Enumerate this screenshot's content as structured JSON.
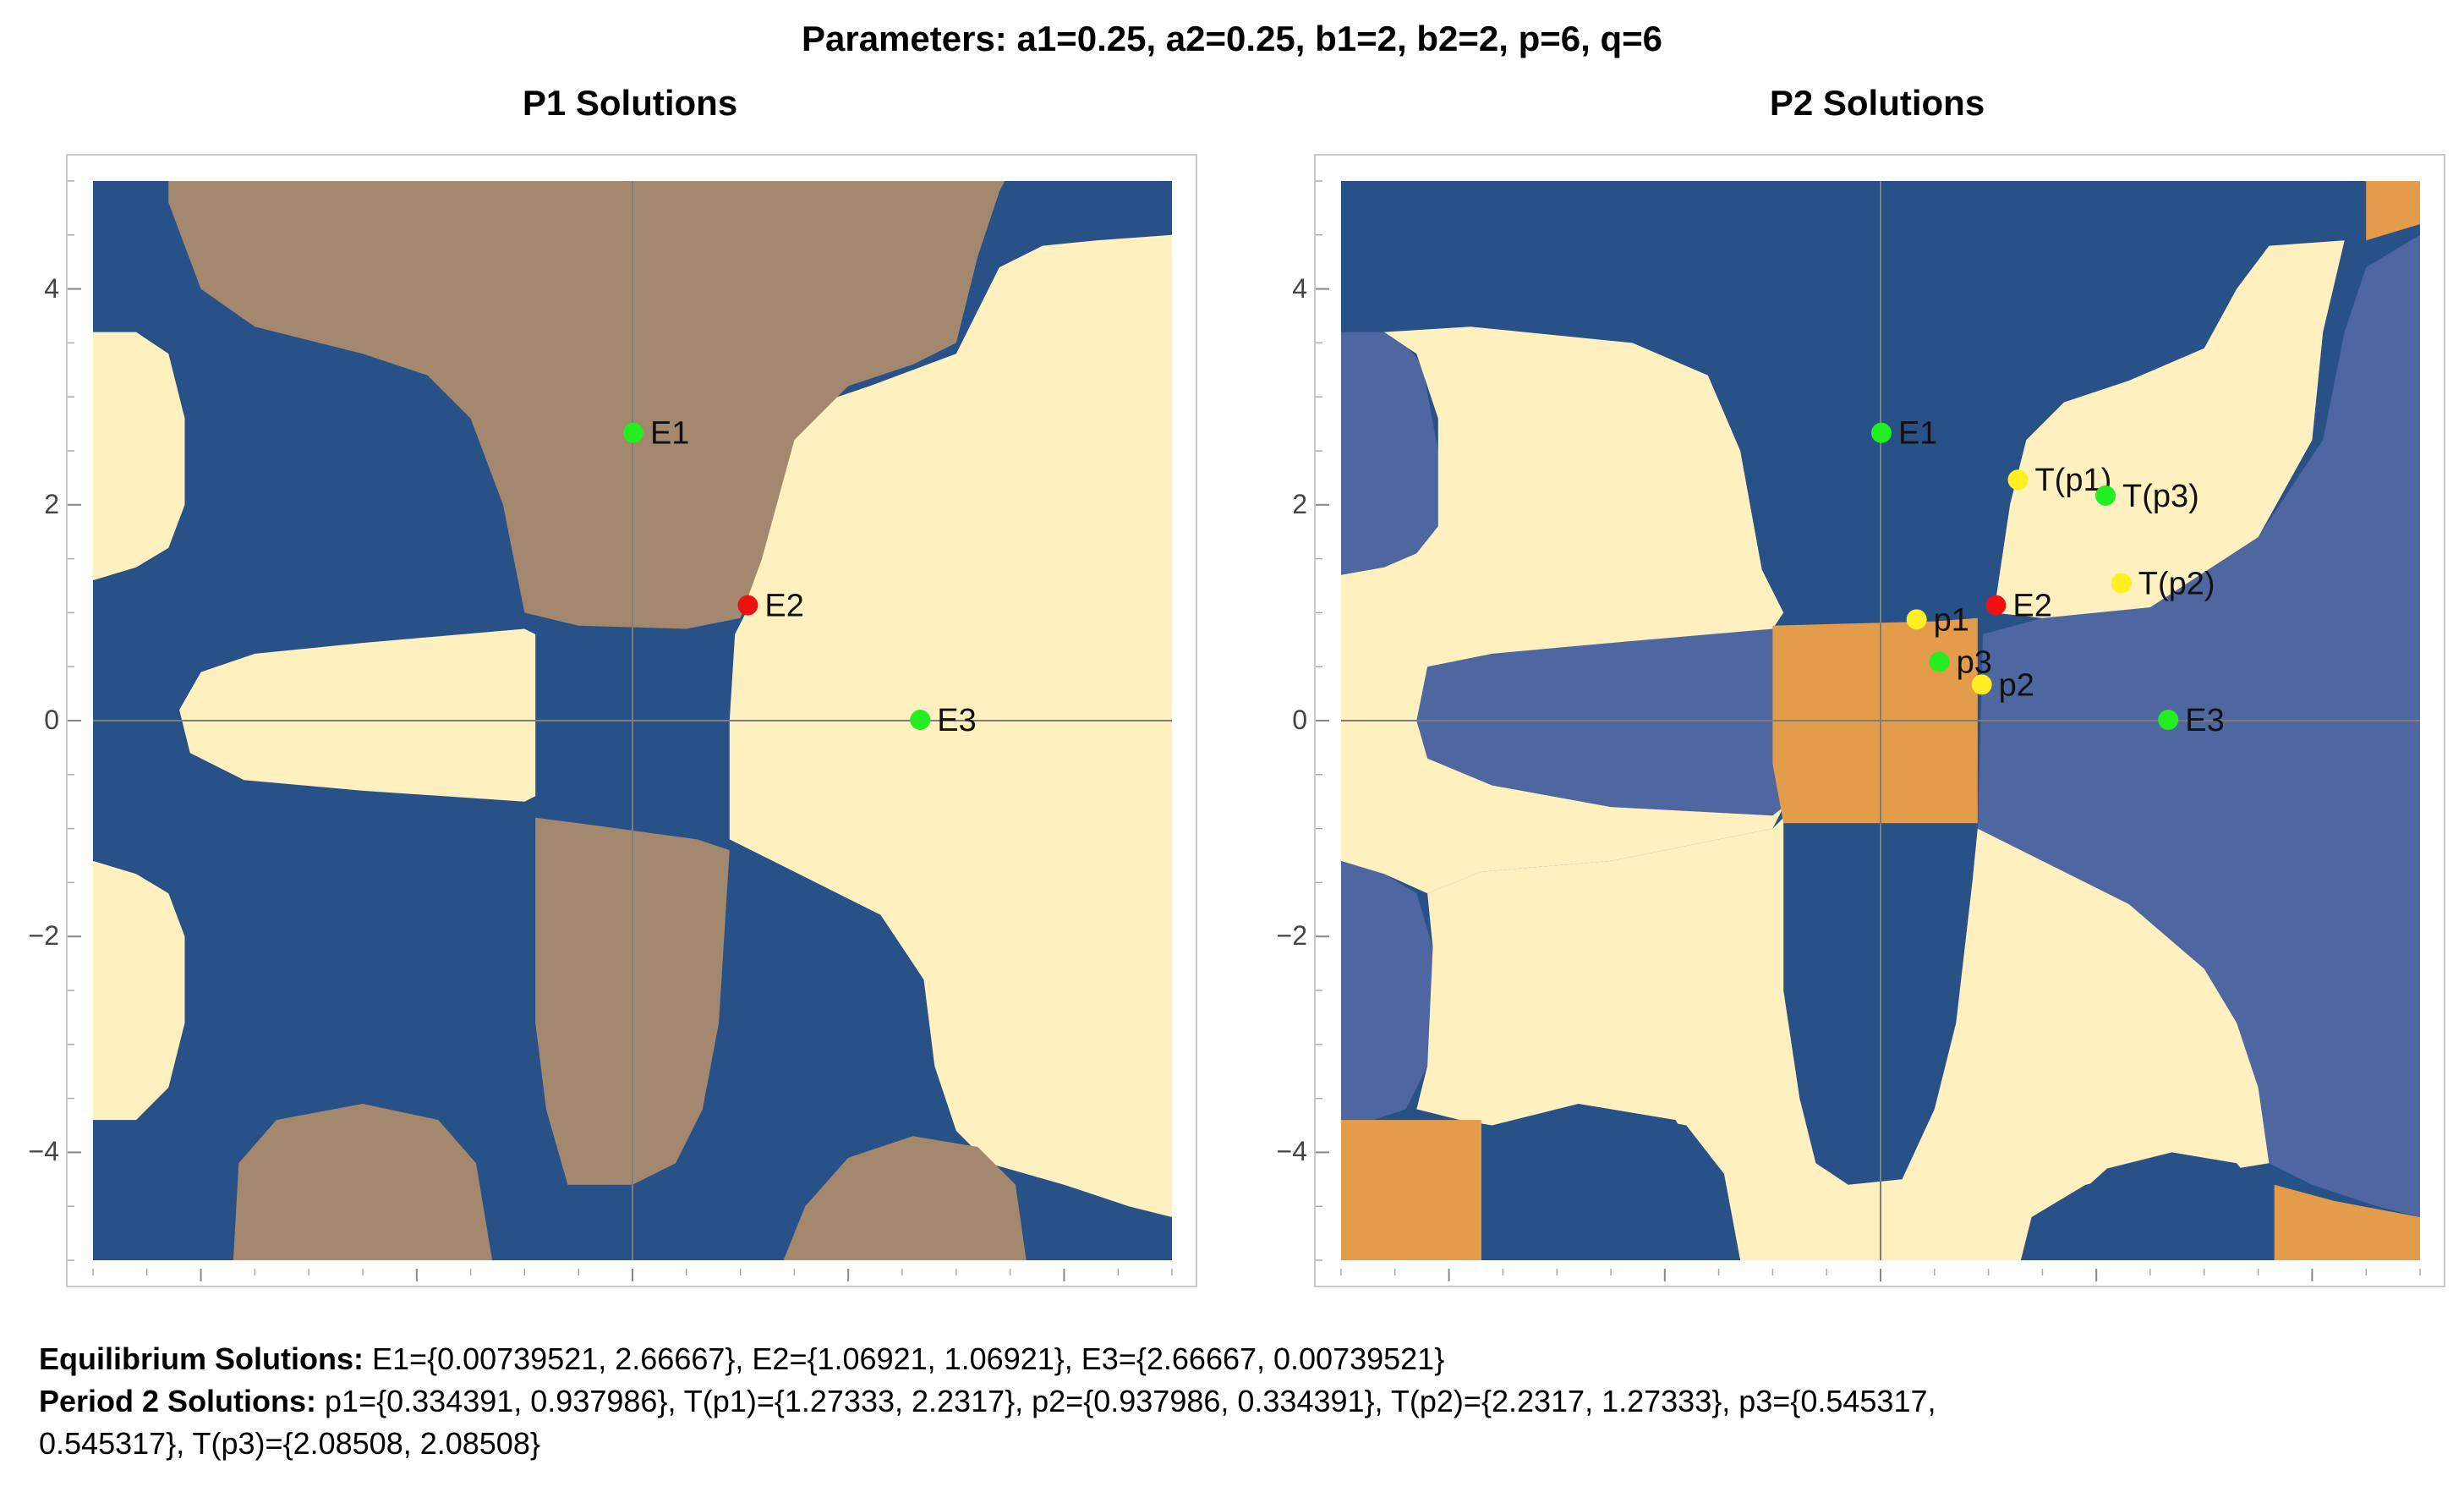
{
  "figure": {
    "suptitle": "Parameters: a1=0.25, a2=0.25, b1=2, b2=2, p=6, q=6",
    "caption": {
      "eq_label": "Equilibrium Solutions:",
      "eq_text": " E1={0.00739521, 2.66667}, E2={1.06921, 1.06921}, E3={2.66667, 0.00739521}",
      "p2_label": "Period 2 Solutions:",
      "p2_text_line1": " p1={0.334391, 0.937986}, T(p1)={1.27333, 2.2317}, p2={0.937986, 0.334391}, T(p2)={2.2317, 1.27333}, p3={0.545317,",
      "p2_text_line2": "0.545317}, T(p3)={2.08508, 2.08508}"
    }
  },
  "colors": {
    "dark_blue": "#285287",
    "tan": "#a3886e",
    "cream": "#fff0c0",
    "slate_blue": "#4f67a0",
    "orange": "#e39d4a",
    "green_marker": "#22ee22",
    "red_marker": "#ee1111",
    "yellow_marker": "#ffee22"
  },
  "chart_data": [
    {
      "type": "heatmap",
      "title": "P1 Solutions",
      "xlim": [
        -5,
        5
      ],
      "ylim": [
        -5,
        5
      ],
      "xticks": [
        -4,
        -2,
        0,
        2,
        4
      ],
      "yticks": [
        -4,
        -2,
        0,
        2,
        4
      ],
      "grid": false,
      "axes_lines": true,
      "points": [
        {
          "label": "E1",
          "x": 0.00739521,
          "y": 2.66667,
          "color": "green"
        },
        {
          "label": "E2",
          "x": 1.06921,
          "y": 1.06921,
          "color": "red"
        },
        {
          "label": "E3",
          "x": 2.66667,
          "y": 0.00739521,
          "color": "green"
        }
      ]
    },
    {
      "type": "heatmap",
      "title": "P2 Solutions",
      "xlim": [
        -5,
        5
      ],
      "ylim": [
        -5,
        5
      ],
      "xticks": [
        -4,
        -2,
        0,
        2,
        4
      ],
      "yticks": [
        -4,
        -2,
        0,
        2,
        4
      ],
      "grid": false,
      "axes_lines": true,
      "points": [
        {
          "label": "E1",
          "x": 0.00739521,
          "y": 2.66667,
          "color": "green"
        },
        {
          "label": "E2",
          "x": 1.06921,
          "y": 1.06921,
          "color": "red"
        },
        {
          "label": "E3",
          "x": 2.66667,
          "y": 0.00739521,
          "color": "green"
        },
        {
          "label": "p1",
          "x": 0.334391,
          "y": 0.937986,
          "color": "yellow"
        },
        {
          "label": "p2",
          "x": 0.937986,
          "y": 0.334391,
          "color": "yellow"
        },
        {
          "label": "p3",
          "x": 0.545317,
          "y": 0.545317,
          "color": "green"
        },
        {
          "label": "T(p1)",
          "x": 1.27333,
          "y": 2.2317,
          "color": "yellow"
        },
        {
          "label": "T(p2)",
          "x": 2.2317,
          "y": 1.27333,
          "color": "yellow"
        },
        {
          "label": "T(p3)",
          "x": 2.08508,
          "y": 2.08508,
          "color": "green"
        }
      ]
    }
  ]
}
